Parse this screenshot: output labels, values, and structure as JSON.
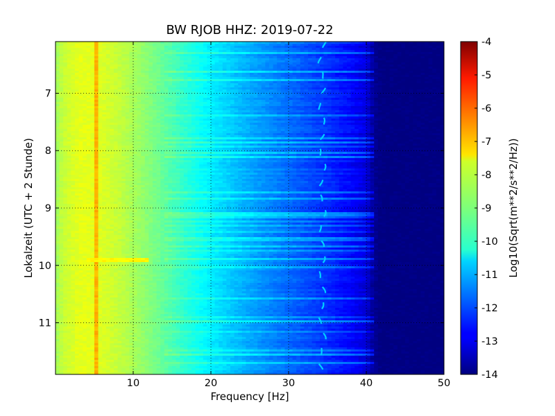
{
  "chart_data": {
    "type": "heatmap",
    "title": "BW RJOB HHZ: 2019-07-22",
    "xlabel": "Frequency [Hz]",
    "ylabel": "Lokalzeit (UTC + 2 Stunde)",
    "xlim": [
      0,
      50
    ],
    "ylim": [
      6.1,
      11.9
    ],
    "y_inverted": true,
    "x_ticks": [
      "10",
      "20",
      "30",
      "40",
      "50"
    ],
    "y_ticks": [
      "7",
      "8",
      "9",
      "10",
      "11"
    ],
    "grid": true,
    "colormap": "jet",
    "colorbar": {
      "label": "Log10(Sqrt(m**2/s**2/Hz))",
      "range": [
        -14,
        -4
      ],
      "ticks": [
        "-4",
        "-5",
        "-6",
        "-7",
        "-8",
        "-9",
        "-10",
        "-11",
        "-12",
        "-13",
        "-14"
      ]
    },
    "value_profile_vs_frequency": {
      "frequency_hz": [
        0,
        1,
        3,
        5,
        8,
        10,
        13,
        16,
        20,
        25,
        30,
        35,
        38,
        40,
        41,
        42,
        50
      ],
      "log10_psd": [
        -8.7,
        -8.3,
        -8.0,
        -8.0,
        -8.3,
        -8.6,
        -9.1,
        -9.7,
        -10.4,
        -11.1,
        -11.7,
        -12.3,
        -12.7,
        -13.1,
        -13.8,
        -14.0,
        -14.0
      ]
    },
    "features": [
      {
        "type": "spectral_line",
        "frequency_hz": 5.1,
        "log10_psd": -7.0
      },
      {
        "type": "spectral_line",
        "frequency_hz": 34.3,
        "log10_psd": -10.7
      },
      {
        "type": "broadband_event",
        "time_h": 9.9,
        "frequency_range_hz": [
          4,
          12
        ],
        "log10_psd": -7.7
      }
    ]
  }
}
